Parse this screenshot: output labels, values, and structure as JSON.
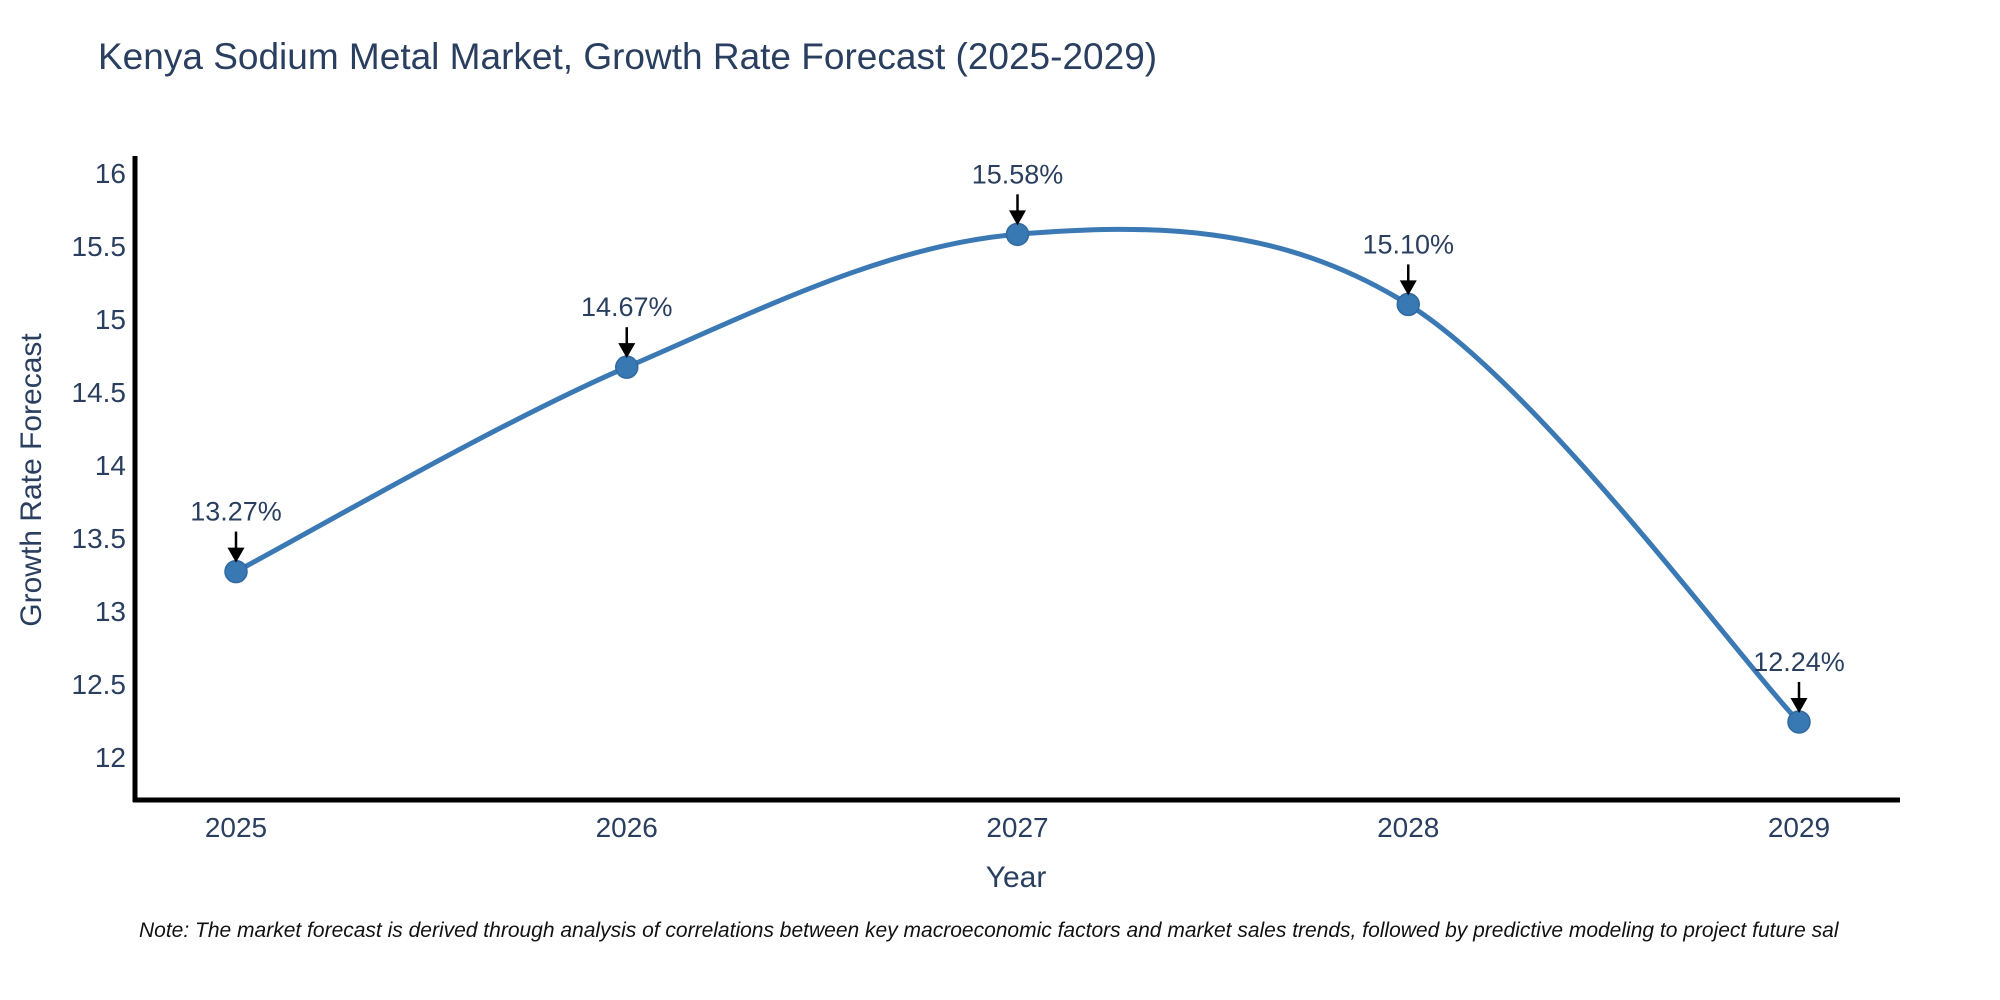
{
  "title": "Kenya Sodium Metal Market, Growth Rate Forecast (2025-2029)",
  "note": "Note: The market forecast is derived through analysis of correlations between key macroeconomic factors and market sales trends, followed by predictive modeling to project future sal",
  "chart_data": {
    "type": "line",
    "title": "Kenya Sodium Metal Market, Growth Rate Forecast (2025-2029)",
    "xlabel": "Year",
    "ylabel": "Growth Rate Forecast",
    "x": [
      2025,
      2026,
      2027,
      2028,
      2029
    ],
    "series": [
      {
        "name": "Growth Rate Forecast",
        "values": [
          13.27,
          14.67,
          15.58,
          15.1,
          12.24
        ],
        "point_labels": [
          "13.27%",
          "14.67%",
          "15.58%",
          "15.10%",
          "12.24%"
        ]
      }
    ],
    "yticks": [
      12,
      12.5,
      13,
      13.5,
      14,
      14.5,
      15,
      15.5,
      16
    ],
    "ylim": [
      11.7,
      16.1
    ],
    "line_shape": "spline",
    "grid": false,
    "legend_position": "none",
    "colors": {
      "line": "#3b79b4",
      "marker": "#3878b3",
      "marker_edge": "#31699f",
      "axis": "#000000",
      "text": "#2a3f5f",
      "annotation_arrow": "#000000",
      "background": "#ffffff"
    }
  }
}
